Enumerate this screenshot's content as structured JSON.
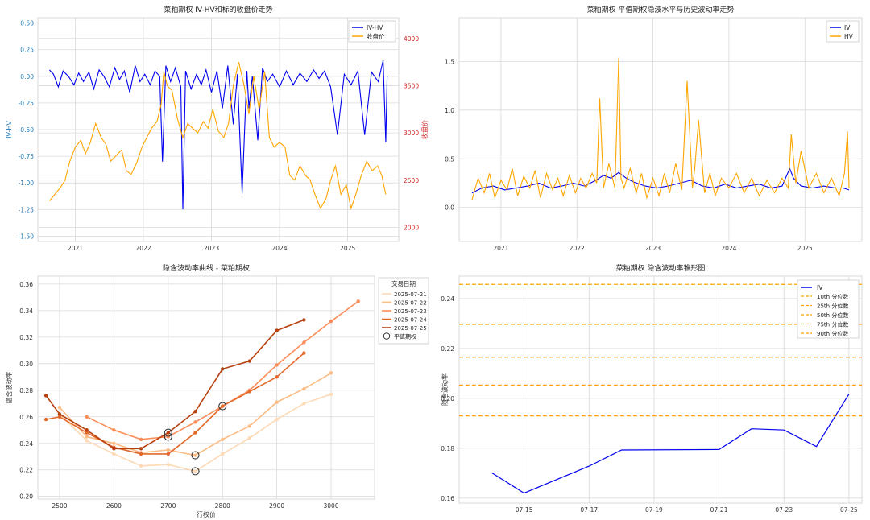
{
  "chart_data": [
    {
      "type": "line",
      "title": "菜粕期权 IV-HV和标的收盘价走势",
      "xlabel": "",
      "ylabel": "IV-HV",
      "y2label": "收盘价",
      "xlim": [
        2020.45,
        2025.75
      ],
      "ylim": [
        -1.55,
        0.55
      ],
      "y2lim": [
        1850,
        4220
      ],
      "x_ticks": [
        "2021",
        "2022",
        "2023",
        "2024",
        "2025"
      ],
      "y_ticks": [
        "0.50",
        "0.25",
        "0.00",
        "-0.25",
        "-0.50",
        "-0.75",
        "-1.00",
        "-1.25",
        "-1.50"
      ],
      "y2_ticks": [
        "4000",
        "3500",
        "3000",
        "2500",
        "2000"
      ],
      "legend": "top-right",
      "series": [
        {
          "name": "IV-HV",
          "axis": "left",
          "color": "#0000ee",
          "x": [
            2020.62,
            2020.68,
            2020.75,
            2020.82,
            2020.9,
            2020.98,
            2021.05,
            2021.12,
            2021.2,
            2021.27,
            2021.35,
            2021.42,
            2021.5,
            2021.58,
            2021.65,
            2021.72,
            2021.8,
            2021.88,
            2021.95,
            2022.02,
            2022.1,
            2022.17,
            2022.24,
            2022.28,
            2022.33,
            2022.4,
            2022.47,
            2022.55,
            2022.58,
            2022.62,
            2022.7,
            2022.78,
            2022.85,
            2022.92,
            2023.0,
            2023.08,
            2023.16,
            2023.24,
            2023.32,
            2023.38,
            2023.45,
            2023.52,
            2023.55,
            2023.6,
            2023.68,
            2023.75,
            2023.82,
            2023.9,
            2024.0,
            2024.1,
            2024.2,
            2024.3,
            2024.4,
            2024.5,
            2024.58,
            2024.66,
            2024.75,
            2024.85,
            2024.95,
            2025.05,
            2025.15,
            2025.25,
            2025.35,
            2025.45,
            2025.52,
            2025.56,
            2025.58
          ],
          "values": [
            0.06,
            0.02,
            -0.1,
            0.05,
            0.0,
            -0.08,
            0.03,
            -0.05,
            0.04,
            -0.12,
            0.06,
            0.0,
            -0.1,
            0.08,
            -0.03,
            0.05,
            -0.15,
            0.1,
            -0.05,
            0.02,
            -0.08,
            0.05,
            0.0,
            -0.8,
            0.1,
            -0.05,
            0.08,
            -0.1,
            -1.25,
            0.05,
            -0.12,
            0.02,
            -0.08,
            0.06,
            -0.15,
            0.05,
            -0.3,
            0.1,
            -0.45,
            0.02,
            -1.1,
            0.05,
            -0.3,
            0.0,
            -0.6,
            0.08,
            -0.05,
            0.02,
            -0.1,
            0.05,
            -0.08,
            0.03,
            -0.05,
            0.06,
            -0.02,
            0.05,
            -0.1,
            -0.55,
            0.02,
            -0.08,
            0.05,
            -0.55,
            0.04,
            -0.05,
            0.15,
            -0.62,
            0.0
          ]
        },
        {
          "name": "收盘价",
          "axis": "right",
          "color": "#ffa500",
          "x": [
            2020.62,
            2020.7,
            2020.78,
            2020.85,
            2020.92,
            2021.0,
            2021.08,
            2021.15,
            2021.22,
            2021.3,
            2021.38,
            2021.45,
            2021.52,
            2021.6,
            2021.68,
            2021.75,
            2021.82,
            2021.9,
            2021.98,
            2022.05,
            2022.12,
            2022.2,
            2022.26,
            2022.3,
            2022.35,
            2022.42,
            2022.5,
            2022.58,
            2022.65,
            2022.72,
            2022.8,
            2022.88,
            2022.95,
            2023.02,
            2023.1,
            2023.18,
            2023.25,
            2023.32,
            2023.4,
            2023.48,
            2023.55,
            2023.62,
            2023.7,
            2023.78,
            2023.85,
            2023.92,
            2024.0,
            2024.08,
            2024.15,
            2024.22,
            2024.3,
            2024.38,
            2024.45,
            2024.52,
            2024.6,
            2024.68,
            2024.75,
            2024.82,
            2024.9,
            2024.98,
            2025.05,
            2025.12,
            2025.2,
            2025.28,
            2025.36,
            2025.44,
            2025.5,
            2025.56
          ],
          "values": [
            2280,
            2350,
            2420,
            2500,
            2700,
            2850,
            2920,
            2780,
            2900,
            3100,
            2950,
            2880,
            2700,
            2760,
            2820,
            2600,
            2560,
            2680,
            2850,
            2950,
            3050,
            3120,
            3300,
            3650,
            3500,
            3450,
            3150,
            2950,
            3100,
            3050,
            3000,
            3120,
            3050,
            3250,
            3020,
            2950,
            3100,
            3500,
            3750,
            3500,
            3200,
            3600,
            3250,
            3650,
            2950,
            2850,
            2900,
            2850,
            2550,
            2500,
            2650,
            2550,
            2500,
            2350,
            2200,
            2300,
            2500,
            2650,
            2350,
            2450,
            2200,
            2350,
            2550,
            2700,
            2600,
            2650,
            2550,
            2350
          ]
        }
      ]
    },
    {
      "type": "line",
      "title": "菜粕期权 平值期权隐波水平与历史波动率走势",
      "xlabel": "",
      "ylabel": "",
      "xlim": [
        2020.45,
        2025.75
      ],
      "ylim": [
        -0.35,
        1.95
      ],
      "x_ticks": [
        "2021",
        "2022",
        "2023",
        "2024",
        "2025"
      ],
      "y_ticks": [
        "1.5",
        "1.0",
        "0.5",
        "0.0"
      ],
      "legend": "top-right",
      "series": [
        {
          "name": "IV",
          "color": "#0000ee",
          "x": [
            2020.62,
            2020.75,
            2020.9,
            2021.05,
            2021.2,
            2021.35,
            2021.5,
            2021.65,
            2021.8,
            2021.95,
            2022.1,
            2022.25,
            2022.35,
            2022.45,
            2022.55,
            2022.65,
            2022.75,
            2022.9,
            2023.05,
            2023.2,
            2023.35,
            2023.5,
            2023.65,
            2023.8,
            2023.95,
            2024.1,
            2024.25,
            2024.4,
            2024.55,
            2024.7,
            2024.8,
            2024.85,
            2024.95,
            2025.1,
            2025.25,
            2025.4,
            2025.5,
            2025.58
          ],
          "values": [
            0.15,
            0.2,
            0.22,
            0.18,
            0.2,
            0.22,
            0.25,
            0.2,
            0.22,
            0.25,
            0.22,
            0.28,
            0.33,
            0.3,
            0.36,
            0.3,
            0.26,
            0.22,
            0.2,
            0.22,
            0.25,
            0.28,
            0.22,
            0.2,
            0.24,
            0.2,
            0.22,
            0.24,
            0.2,
            0.22,
            0.4,
            0.3,
            0.22,
            0.2,
            0.22,
            0.2,
            0.2,
            0.18
          ]
        },
        {
          "name": "HV",
          "color": "#ffa500",
          "x": [
            2020.62,
            2020.7,
            2020.78,
            2020.85,
            2020.92,
            2021.0,
            2021.08,
            2021.15,
            2021.22,
            2021.3,
            2021.38,
            2021.45,
            2021.52,
            2021.6,
            2021.68,
            2021.75,
            2021.82,
            2021.9,
            2021.98,
            2022.05,
            2022.12,
            2022.2,
            2022.26,
            2022.3,
            2022.35,
            2022.42,
            2022.5,
            2022.55,
            2022.58,
            2022.62,
            2022.7,
            2022.78,
            2022.85,
            2022.92,
            2023.0,
            2023.08,
            2023.15,
            2023.22,
            2023.3,
            2023.38,
            2023.45,
            2023.52,
            2023.55,
            2023.6,
            2023.68,
            2023.75,
            2023.82,
            2023.9,
            2024.0,
            2024.1,
            2024.2,
            2024.3,
            2024.4,
            2024.5,
            2024.6,
            2024.7,
            2024.78,
            2024.82,
            2024.88,
            2024.95,
            2025.05,
            2025.15,
            2025.25,
            2025.35,
            2025.45,
            2025.52,
            2025.56,
            2025.58
          ],
          "values": [
            0.08,
            0.3,
            0.15,
            0.35,
            0.1,
            0.28,
            0.18,
            0.4,
            0.12,
            0.32,
            0.2,
            0.38,
            0.1,
            0.35,
            0.18,
            0.3,
            0.12,
            0.33,
            0.15,
            0.3,
            0.2,
            0.35,
            0.25,
            1.12,
            0.2,
            0.45,
            0.2,
            1.54,
            0.3,
            0.2,
            0.4,
            0.15,
            0.35,
            0.1,
            0.3,
            0.12,
            0.35,
            0.15,
            0.45,
            0.18,
            1.3,
            0.2,
            0.4,
            0.9,
            0.15,
            0.35,
            0.12,
            0.3,
            0.2,
            0.35,
            0.15,
            0.3,
            0.12,
            0.28,
            0.15,
            0.3,
            0.2,
            0.75,
            0.25,
            0.58,
            0.2,
            0.35,
            0.15,
            0.3,
            0.12,
            0.35,
            0.78,
            0.2
          ]
        }
      ]
    },
    {
      "type": "line",
      "title": "隐含波动率曲线 - 菜粕期权",
      "xlabel": "行权价",
      "ylabel": "隐含波动率",
      "xlim": [
        2460,
        3080
      ],
      "ylim": [
        0.198,
        0.366
      ],
      "x_ticks": [
        "2500",
        "2600",
        "2700",
        "2800",
        "2900",
        "3000"
      ],
      "y_ticks": [
        "0.36",
        "0.34",
        "0.32",
        "0.30",
        "0.28",
        "0.26",
        "0.24",
        "0.22",
        "0.20"
      ],
      "legend_title": "交易日期",
      "legend": "right",
      "atm_label": "平值期权",
      "series": [
        {
          "name": "2025-07-21",
          "color": "#fdd9b5",
          "x": [
            2500,
            2550,
            2600,
            2650,
            2700,
            2750,
            2800,
            2850,
            2900,
            2950,
            3000
          ],
          "values": [
            0.262,
            0.242,
            0.232,
            0.223,
            0.224,
            0.219,
            0.232,
            0.244,
            0.258,
            0.27,
            0.277
          ],
          "atm": 2750
        },
        {
          "name": "2025-07-22",
          "color": "#fdbb84",
          "x": [
            2500,
            2550,
            2600,
            2650,
            2700,
            2750,
            2800,
            2850,
            2900,
            2950,
            3000
          ],
          "values": [
            0.267,
            0.245,
            0.24,
            0.233,
            0.235,
            0.231,
            0.243,
            0.253,
            0.271,
            0.281,
            0.293
          ],
          "atm": 2750
        },
        {
          "name": "2025-07-23",
          "color": "#fc8d59",
          "x": [
            2550,
            2600,
            2650,
            2700,
            2750,
            2800,
            2850,
            2900,
            2950,
            3000,
            3050
          ],
          "values": [
            0.26,
            0.25,
            0.243,
            0.245,
            0.256,
            0.268,
            0.28,
            0.299,
            0.316,
            0.332,
            0.347
          ],
          "atm": 2700
        },
        {
          "name": "2025-07-24",
          "color": "#e3692b",
          "x": [
            2475,
            2500,
            2550,
            2600,
            2650,
            2700,
            2750,
            2800,
            2850,
            2900,
            2950
          ],
          "values": [
            0.258,
            0.26,
            0.248,
            0.237,
            0.232,
            0.232,
            0.248,
            0.268,
            0.279,
            0.29,
            0.308
          ],
          "atm": 2800
        },
        {
          "name": "2025-07-25",
          "color": "#b7410e",
          "x": [
            2475,
            2500,
            2550,
            2600,
            2650,
            2700,
            2750,
            2800,
            2850,
            2900,
            2950
          ],
          "values": [
            0.276,
            0.262,
            0.25,
            0.236,
            0.236,
            0.248,
            0.264,
            0.296,
            0.302,
            0.325,
            0.333
          ],
          "atm": 2700
        }
      ]
    },
    {
      "type": "line",
      "title": "菜粕期权 隐含波动率锥形图",
      "xlabel": "",
      "ylabel": "隐含波动率",
      "xlim": [
        13.0,
        25.4
      ],
      "ylim": [
        0.158,
        0.249
      ],
      "x_ticks": [
        "07-15",
        "07-17",
        "07-19",
        "07-21",
        "07-23",
        "07-25"
      ],
      "x_tick_values": [
        15,
        17,
        19,
        21,
        23,
        25
      ],
      "y_ticks": [
        "0.24",
        "0.22",
        "0.20",
        "0.18",
        "0.16"
      ],
      "legend": "top-right",
      "series": [
        {
          "name": "IV",
          "color": "#0000ee",
          "x": [
            14,
            15,
            17,
            18,
            21,
            22,
            23,
            24,
            25
          ],
          "values": [
            0.1702,
            0.162,
            0.1728,
            0.1793,
            0.1795,
            0.1878,
            0.1873,
            0.1807,
            0.2017
          ]
        }
      ],
      "percentiles": [
        {
          "name": "10th 分位数",
          "value": 0.193
        },
        {
          "name": "25th 分位数",
          "value": 0.2053
        },
        {
          "name": "50th 分位数",
          "value": 0.2165
        },
        {
          "name": "75th 分位数",
          "value": 0.2297
        },
        {
          "name": "90th 分位数",
          "value": 0.2457
        }
      ]
    }
  ]
}
